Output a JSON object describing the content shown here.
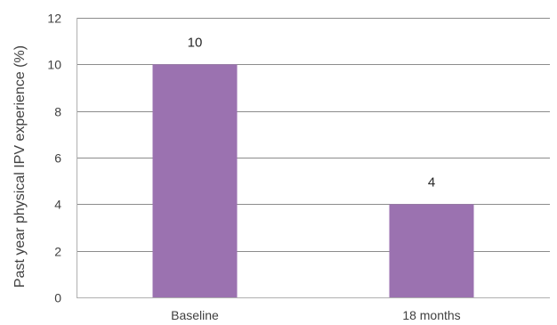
{
  "chart_data": {
    "type": "bar",
    "title": "",
    "xlabel": "",
    "ylabel": "Past year physical IPV experience (%)",
    "categories": [
      "Baseline",
      "18 months"
    ],
    "values": [
      10,
      4
    ],
    "data_labels": [
      "10",
      "4"
    ],
    "ylim": [
      0,
      12
    ],
    "yticks": [
      0,
      2,
      4,
      6,
      8,
      10,
      12
    ],
    "grid": true,
    "legend": "none",
    "bar_color": "#9b72b0",
    "grid_color": "#8c8c8c",
    "axis_color": "#b0b0b0"
  }
}
